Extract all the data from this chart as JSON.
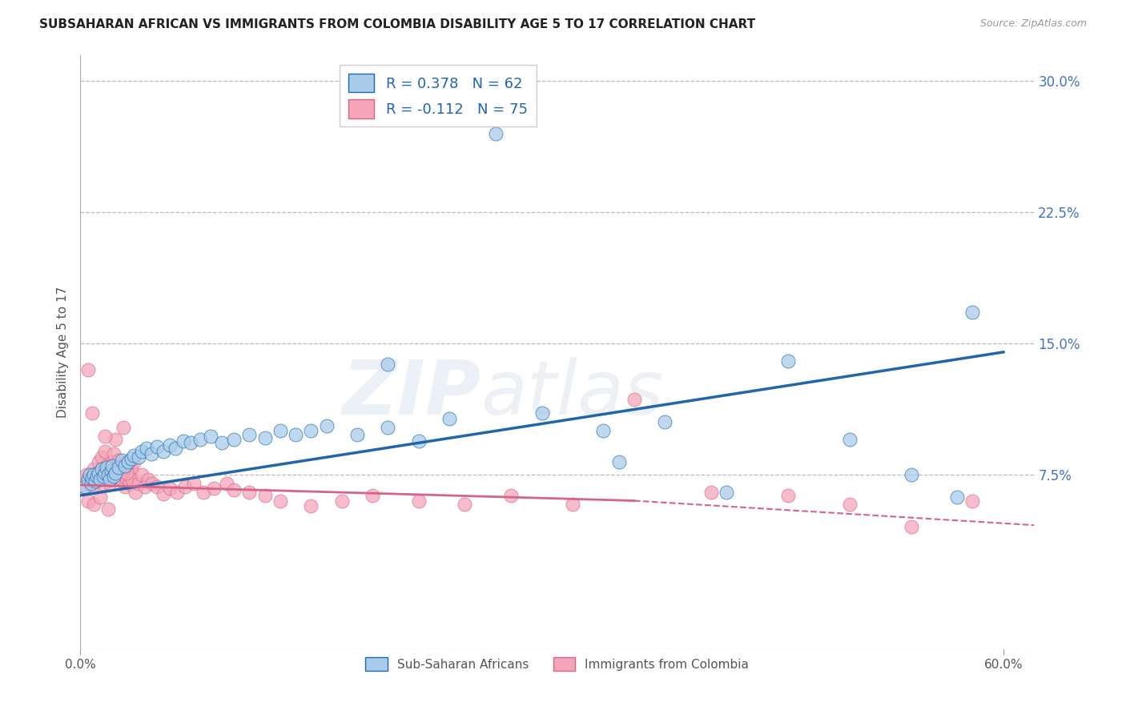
{
  "title": "SUBSAHARAN AFRICAN VS IMMIGRANTS FROM COLOMBIA DISABILITY AGE 5 TO 17 CORRELATION CHART",
  "source": "Source: ZipAtlas.com",
  "ylabel": "Disability Age 5 to 17",
  "xlim": [
    0.0,
    0.62
  ],
  "ylim": [
    -0.025,
    0.315
  ],
  "yticks_right": [
    0.075,
    0.15,
    0.225,
    0.3
  ],
  "yticklabels_right": [
    "7.5%",
    "15.0%",
    "22.5%",
    "30.0%"
  ],
  "grid_yticks": [
    0.075,
    0.15,
    0.225,
    0.3
  ],
  "blue_color": "#A8CCEA",
  "pink_color": "#F4A6B8",
  "blue_line_color": "#2166AC",
  "pink_line_color": "#D6638A",
  "pink_line_solid_color": "#D6638A",
  "pink_line_dash_color": "#D6638A",
  "legend_blue_label": "R = 0.378   N = 62",
  "legend_pink_label": "R = -0.112   N = 75",
  "legend1_label": "Sub-Saharan Africans",
  "legend2_label": "Immigrants from Colombia",
  "watermark": "ZIPatlas",
  "blue_line_x0": 0.0,
  "blue_line_y0": 0.063,
  "blue_line_x1": 0.6,
  "blue_line_y1": 0.145,
  "pink_line_solid_x0": 0.0,
  "pink_line_solid_y0": 0.069,
  "pink_line_solid_x1": 0.36,
  "pink_line_solid_y1": 0.06,
  "pink_line_dash_x0": 0.36,
  "pink_line_dash_y0": 0.06,
  "pink_line_dash_x1": 0.62,
  "pink_line_dash_y1": 0.046,
  "blue_scatter_x": [
    0.003,
    0.005,
    0.006,
    0.007,
    0.008,
    0.009,
    0.01,
    0.011,
    0.012,
    0.013,
    0.014,
    0.015,
    0.016,
    0.017,
    0.018,
    0.019,
    0.02,
    0.021,
    0.022,
    0.023,
    0.025,
    0.027,
    0.029,
    0.031,
    0.033,
    0.035,
    0.038,
    0.04,
    0.043,
    0.046,
    0.05,
    0.054,
    0.058,
    0.062,
    0.067,
    0.072,
    0.078,
    0.085,
    0.092,
    0.1,
    0.11,
    0.12,
    0.13,
    0.14,
    0.15,
    0.16,
    0.18,
    0.2,
    0.22,
    0.24,
    0.27,
    0.3,
    0.34,
    0.38,
    0.42,
    0.46,
    0.5,
    0.54,
    0.58,
    0.2,
    0.35,
    0.57
  ],
  "blue_scatter_y": [
    0.068,
    0.072,
    0.075,
    0.07,
    0.073,
    0.075,
    0.071,
    0.074,
    0.076,
    0.072,
    0.078,
    0.074,
    0.076,
    0.079,
    0.075,
    0.072,
    0.077,
    0.08,
    0.074,
    0.076,
    0.079,
    0.083,
    0.08,
    0.082,
    0.084,
    0.086,
    0.085,
    0.088,
    0.09,
    0.087,
    0.091,
    0.088,
    0.092,
    0.09,
    0.094,
    0.093,
    0.095,
    0.097,
    0.093,
    0.095,
    0.098,
    0.096,
    0.1,
    0.098,
    0.1,
    0.103,
    0.098,
    0.102,
    0.094,
    0.107,
    0.27,
    0.11,
    0.1,
    0.105,
    0.065,
    0.14,
    0.095,
    0.075,
    0.168,
    0.138,
    0.082,
    0.062
  ],
  "pink_scatter_x": [
    0.002,
    0.003,
    0.004,
    0.005,
    0.006,
    0.007,
    0.008,
    0.009,
    0.01,
    0.011,
    0.012,
    0.013,
    0.014,
    0.015,
    0.016,
    0.017,
    0.018,
    0.019,
    0.02,
    0.021,
    0.022,
    0.023,
    0.024,
    0.025,
    0.026,
    0.027,
    0.028,
    0.029,
    0.03,
    0.031,
    0.032,
    0.033,
    0.034,
    0.035,
    0.036,
    0.038,
    0.04,
    0.042,
    0.044,
    0.047,
    0.05,
    0.054,
    0.058,
    0.063,
    0.068,
    0.074,
    0.08,
    0.087,
    0.095,
    0.1,
    0.11,
    0.12,
    0.13,
    0.15,
    0.17,
    0.19,
    0.22,
    0.25,
    0.28,
    0.32,
    0.36,
    0.41,
    0.46,
    0.5,
    0.54,
    0.58,
    0.005,
    0.009,
    0.013,
    0.018,
    0.023,
    0.028,
    0.008,
    0.016,
    0.03
  ],
  "pink_scatter_y": [
    0.068,
    0.072,
    0.075,
    0.135,
    0.07,
    0.073,
    0.068,
    0.078,
    0.072,
    0.076,
    0.082,
    0.075,
    0.085,
    0.07,
    0.088,
    0.08,
    0.075,
    0.07,
    0.073,
    0.082,
    0.087,
    0.075,
    0.079,
    0.083,
    0.073,
    0.08,
    0.076,
    0.068,
    0.073,
    0.076,
    0.07,
    0.078,
    0.072,
    0.082,
    0.065,
    0.07,
    0.075,
    0.068,
    0.072,
    0.07,
    0.068,
    0.064,
    0.067,
    0.065,
    0.068,
    0.07,
    0.065,
    0.067,
    0.07,
    0.066,
    0.065,
    0.063,
    0.06,
    0.057,
    0.06,
    0.063,
    0.06,
    0.058,
    0.063,
    0.058,
    0.118,
    0.065,
    0.063,
    0.058,
    0.045,
    0.06,
    0.06,
    0.058,
    0.062,
    0.055,
    0.095,
    0.102,
    0.11,
    0.097,
    0.076
  ]
}
